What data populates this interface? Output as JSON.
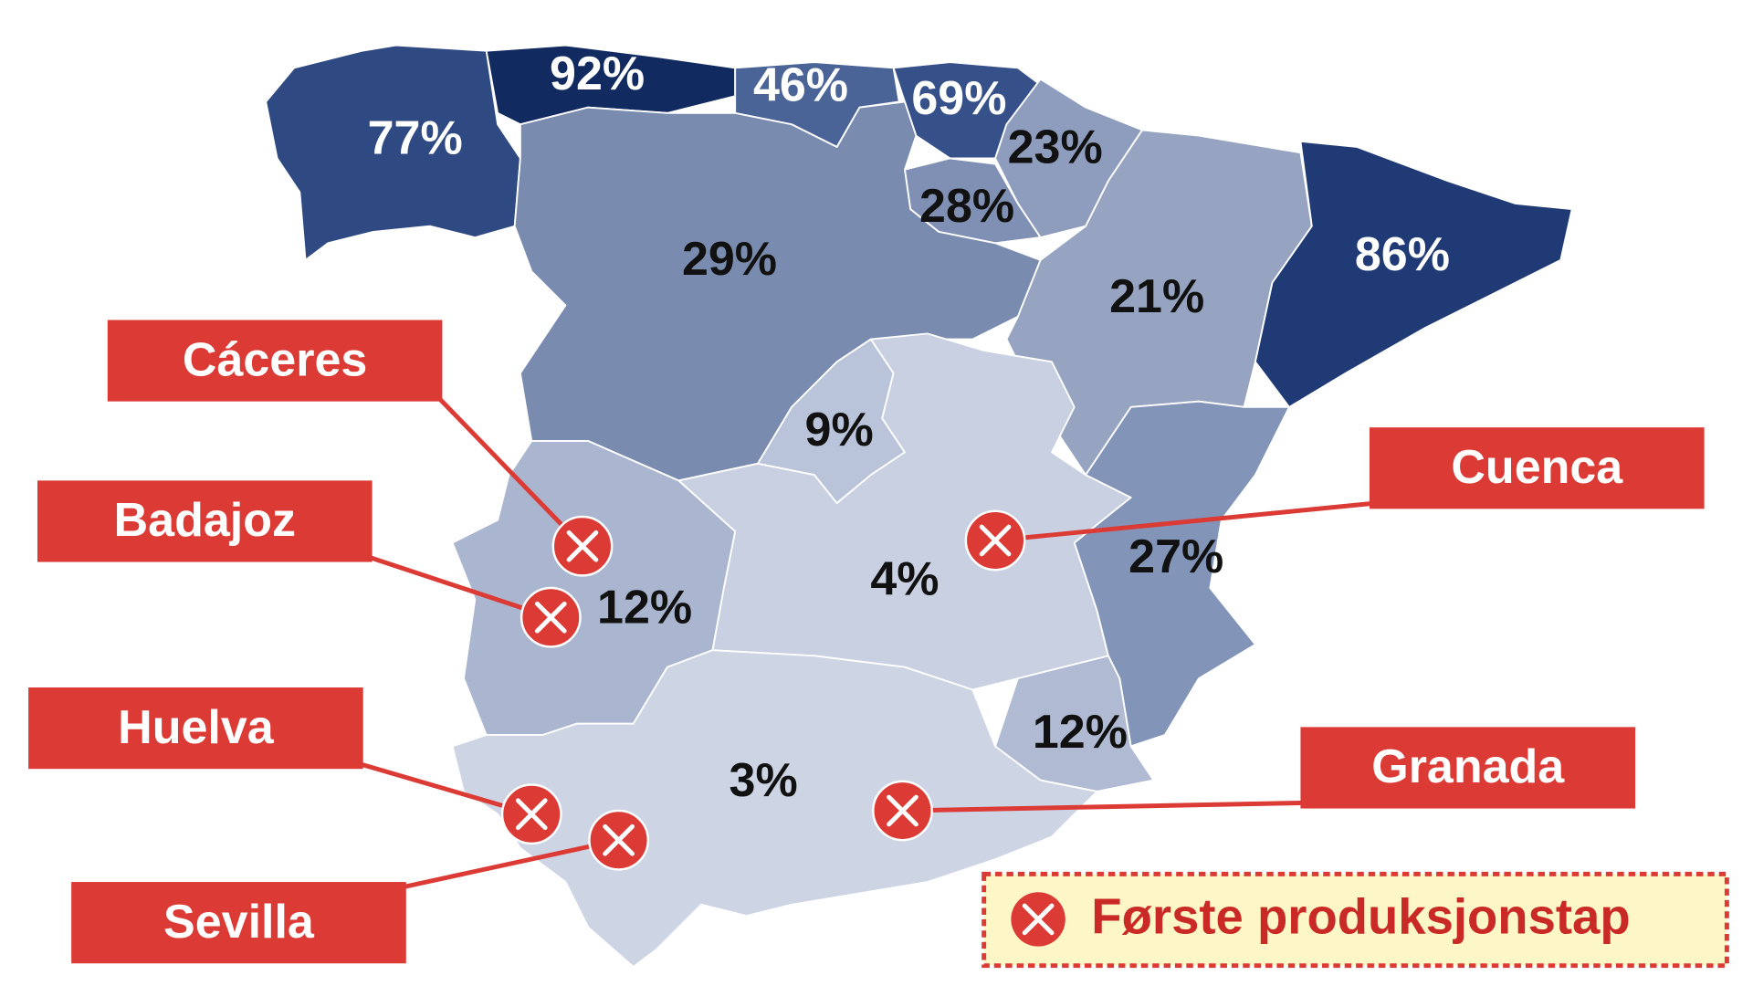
{
  "map": {
    "regions": [
      {
        "value": 77,
        "label": "77%",
        "color": "#2f4a82"
      },
      {
        "value": 92,
        "label": "92%",
        "color": "#112b61"
      },
      {
        "value": 46,
        "label": "46%",
        "color": "#4b6498"
      },
      {
        "value": 69,
        "label": "69%",
        "color": "#36518a"
      },
      {
        "value": 23,
        "label": "23%",
        "color": "#8e9dbd"
      },
      {
        "value": 28,
        "label": "28%",
        "color": "#7f90b4"
      },
      {
        "value": 29,
        "label": "29%",
        "color": "#7a8bb0"
      },
      {
        "value": 21,
        "label": "21%",
        "color": "#96a4c2"
      },
      {
        "value": 86,
        "label": "86%",
        "color": "#1f3a74"
      },
      {
        "value": 9,
        "label": "9%",
        "color": "#b9c3d9"
      },
      {
        "value": 4,
        "label": "4%",
        "color": "#c8d0e2"
      },
      {
        "value": 27,
        "label": "27%",
        "color": "#8294b7"
      },
      {
        "value": 12,
        "label": "12%",
        "color": "#aab6cf"
      },
      {
        "value": 12,
        "label": "12%",
        "color": "#b0bbd3"
      },
      {
        "value": 3,
        "label": "3%",
        "color": "#cdd4e4"
      }
    ],
    "locations": [
      {
        "label": "Cáceres"
      },
      {
        "label": "Badajoz"
      },
      {
        "label": "Huelva"
      },
      {
        "label": "Sevilla"
      },
      {
        "label": "Cuenca"
      },
      {
        "label": "Granada"
      }
    ],
    "legend": {
      "label": "Første produksjonstap"
    }
  }
}
